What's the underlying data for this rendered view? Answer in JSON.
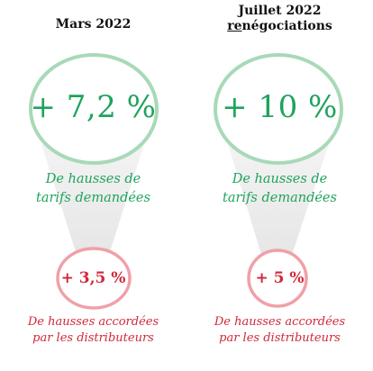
{
  "colors": {
    "green": "#1fa35d",
    "green_light": "#a8d9b8",
    "red": "#d0283a",
    "red_light": "#f0a0a8",
    "funnel_fill": "#eeeeee"
  },
  "left": {
    "header": "Mars 2022",
    "requested_value": "+ 7,2 %",
    "requested_desc_line1": "De hausses de",
    "requested_desc_line2": "tarifs demandées",
    "granted_value": "+ 3,5 %",
    "granted_desc_line1": "De hausses accordées",
    "granted_desc_line2": "par les distributeurs"
  },
  "right": {
    "header_line1": "Juillet 2022",
    "header_line2_underlined": "re",
    "header_line2_rest": "négociations",
    "requested_value": "+ 10 %",
    "requested_desc_line1": "De hausses de",
    "requested_desc_line2": "tarifs demandées",
    "granted_value": "+ 5 %",
    "granted_desc_line1": "De hausses accordées",
    "granted_desc_line2": "par les distributeurs"
  }
}
